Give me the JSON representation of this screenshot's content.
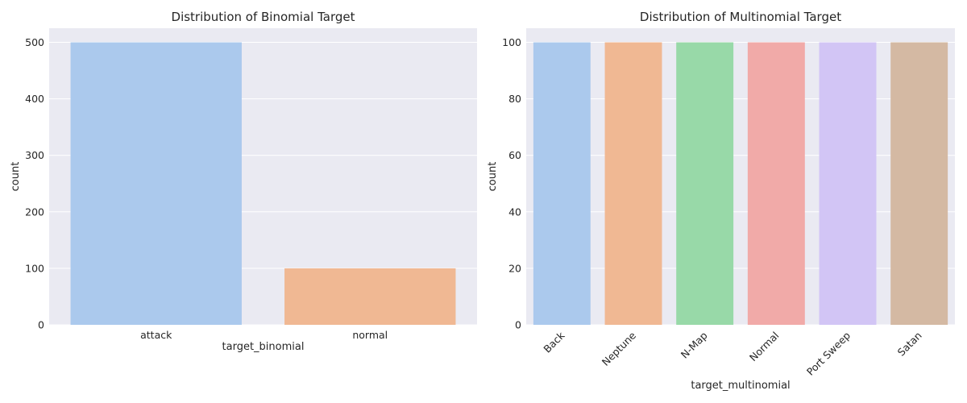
{
  "chart_data": [
    {
      "type": "bar",
      "title": "Distribution of Binomial Target",
      "xlabel": "target_binomial",
      "ylabel": "count",
      "categories": [
        "attack",
        "normal"
      ],
      "values": [
        500,
        100
      ],
      "colors": [
        "#abc9ed",
        "#f0b893"
      ],
      "ylim": [
        0,
        525
      ],
      "yticks": [
        "0",
        "100",
        "200",
        "300",
        "400",
        "500"
      ],
      "grid": true,
      "background": "#eaeaf2"
    },
    {
      "type": "bar",
      "title": "Distribution of Multinomial Target",
      "xlabel": "target_multinomial",
      "ylabel": "count",
      "categories": [
        "Back",
        "Neptune",
        "N-Map",
        "Normal",
        "Port Sweep",
        "Satan"
      ],
      "values": [
        100,
        100,
        100,
        100,
        100,
        100
      ],
      "colors": [
        "#abc9ed",
        "#f0b893",
        "#98d9a8",
        "#f1aaa8",
        "#d2c5f5",
        "#d4b9a3"
      ],
      "ylim": [
        0,
        105
      ],
      "yticks": [
        "0",
        "20",
        "40",
        "60",
        "80",
        "100"
      ],
      "grid": true,
      "background": "#eaeaf2",
      "xtick_rotation": 45
    }
  ]
}
